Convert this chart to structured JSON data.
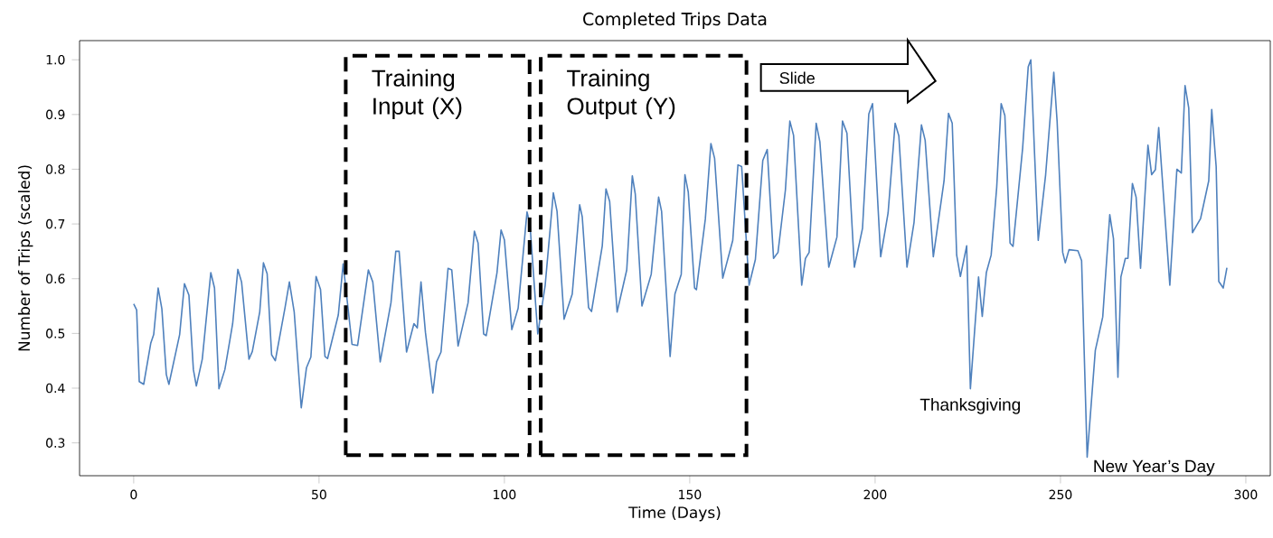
{
  "chart_data": {
    "type": "line",
    "title": "Completed Trips Data",
    "xlabel": "Time (Days)",
    "ylabel": "Number of Trips (scaled)",
    "x": [
      0,
      0.8,
      1.5,
      2.7,
      4.6,
      5.4,
      6.6,
      7.6,
      8.8,
      9.5,
      12.4,
      13.7,
      14.9,
      16.1,
      16.9,
      18.5,
      20.8,
      21.8,
      23,
      24.6,
      26.7,
      28.1,
      29.1,
      31.1,
      32,
      34,
      35,
      36,
      37.2,
      38.2,
      40.8,
      42,
      43.3,
      45.2,
      46.6,
      47.8,
      49.2,
      50.4,
      51.6,
      52.3,
      55.2,
      56.5,
      58.9,
      60.4,
      63.3,
      64.5,
      66.5,
      69.4,
      70.7,
      71.6,
      73.6,
      75.6,
      76.5,
      77.5,
      78.7,
      80.7,
      81.7,
      82.9,
      84.8,
      85.8,
      87.5,
      90.2,
      91.9,
      92.9,
      94.4,
      95.1,
      98,
      99.1,
      100,
      102,
      103.7,
      106.1,
      106.9,
      109,
      111,
      113.2,
      114.2,
      116.1,
      118.3,
      120.3,
      121,
      122.7,
      123.5,
      126.4,
      127.4,
      128.4,
      130.4,
      133,
      134.5,
      135.3,
      137.1,
      139.6,
      141.6,
      142.4,
      144.7,
      146,
      147.7,
      148.7,
      149.6,
      151.3,
      151.8,
      154.2,
      155.7,
      156.7,
      158.9,
      161.6,
      163,
      164,
      166,
      167.7,
      169.7,
      170.9,
      172.6,
      173.8,
      175.8,
      177,
      178,
      180.2,
      181.2,
      182.2,
      184.1,
      185.1,
      187.5,
      189.7,
      191.2,
      192.4,
      194.4,
      196.6,
      198.3,
      199.3,
      201.5,
      203.5,
      205.4,
      206.4,
      208.6,
      210.5,
      212.5,
      213.5,
      215.7,
      218.6,
      219.8,
      220.8,
      222,
      223,
      224.7,
      225.7,
      227.9,
      228.9,
      230,
      231.3,
      232.8,
      234,
      235,
      236.4,
      237.2,
      239.8,
      241.3,
      242,
      243,
      244,
      246,
      248.2,
      249.1,
      250.6,
      251.3,
      252.3,
      254.7,
      255.7,
      257.2,
      259.4,
      261.4,
      263.3,
      264.3,
      265.5,
      266.3,
      267.5,
      268.2,
      269.4,
      270.4,
      271.6,
      273.6,
      274.6,
      275.6,
      276.5,
      279.5,
      281.4,
      282.6,
      283.6,
      284.6,
      285.6,
      287.8,
      290,
      290.8,
      292,
      292.7,
      293.9,
      294.9
    ],
    "series": [
      {
        "color": "#4f81bd",
        "values": [
          0.554,
          0.543,
          0.412,
          0.407,
          0.482,
          0.498,
          0.583,
          0.545,
          0.425,
          0.407,
          0.498,
          0.591,
          0.57,
          0.434,
          0.404,
          0.453,
          0.611,
          0.583,
          0.399,
          0.434,
          0.518,
          0.617,
          0.594,
          0.453,
          0.467,
          0.539,
          0.629,
          0.609,
          0.461,
          0.45,
          0.546,
          0.594,
          0.539,
          0.364,
          0.437,
          0.457,
          0.604,
          0.58,
          0.458,
          0.454,
          0.534,
          0.627,
          0.48,
          0.478,
          0.616,
          0.594,
          0.448,
          0.556,
          0.65,
          0.65,
          0.466,
          0.518,
          0.51,
          0.594,
          0.502,
          0.391,
          0.448,
          0.466,
          0.619,
          0.616,
          0.477,
          0.556,
          0.687,
          0.665,
          0.499,
          0.496,
          0.611,
          0.689,
          0.671,
          0.507,
          0.546,
          0.722,
          0.699,
          0.499,
          0.588,
          0.757,
          0.723,
          0.526,
          0.572,
          0.735,
          0.713,
          0.547,
          0.54,
          0.66,
          0.764,
          0.741,
          0.539,
          0.616,
          0.788,
          0.755,
          0.55,
          0.608,
          0.749,
          0.723,
          0.458,
          0.572,
          0.608,
          0.79,
          0.758,
          0.583,
          0.58,
          0.709,
          0.847,
          0.82,
          0.601,
          0.67,
          0.808,
          0.805,
          0.588,
          0.635,
          0.816,
          0.836,
          0.637,
          0.648,
          0.762,
          0.888,
          0.862,
          0.588,
          0.637,
          0.648,
          0.884,
          0.85,
          0.621,
          0.676,
          0.888,
          0.866,
          0.621,
          0.692,
          0.901,
          0.92,
          0.64,
          0.72,
          0.884,
          0.861,
          0.621,
          0.703,
          0.881,
          0.853,
          0.64,
          0.779,
          0.902,
          0.884,
          0.643,
          0.604,
          0.66,
          0.399,
          0.603,
          0.531,
          0.611,
          0.643,
          0.767,
          0.92,
          0.898,
          0.665,
          0.659,
          0.839,
          0.987,
          1.0,
          0.83,
          0.67,
          0.79,
          0.977,
          0.887,
          0.648,
          0.629,
          0.653,
          0.651,
          0.633,
          0.274,
          0.469,
          0.53,
          0.717,
          0.673,
          0.42,
          0.603,
          0.637,
          0.637,
          0.774,
          0.749,
          0.619,
          0.844,
          0.79,
          0.799,
          0.876,
          0.588,
          0.8,
          0.793,
          0.953,
          0.912,
          0.684,
          0.71,
          0.779,
          0.909,
          0.805,
          0.595,
          0.583,
          0.62
        ]
      }
    ],
    "xlim": [
      -14.6,
      306.6
    ],
    "ylim": [
      0.24,
      1.035
    ],
    "xticks": [
      0,
      50,
      100,
      150,
      200,
      250,
      300
    ],
    "yticks": [
      0.3,
      0.4,
      0.5,
      0.6,
      0.7,
      0.8,
      0.9,
      {
        "value": 1.0,
        "label": "1.0"
      }
    ],
    "annotations": [
      "Training Input (X)",
      "Training Output (Y)",
      "Slide",
      {
        "text": "Thanksgiving",
        "x": 225.7,
        "y": 0.399
      },
      {
        "text": "New Year’s Day",
        "x": 257.2,
        "y": 0.274
      }
    ]
  }
}
